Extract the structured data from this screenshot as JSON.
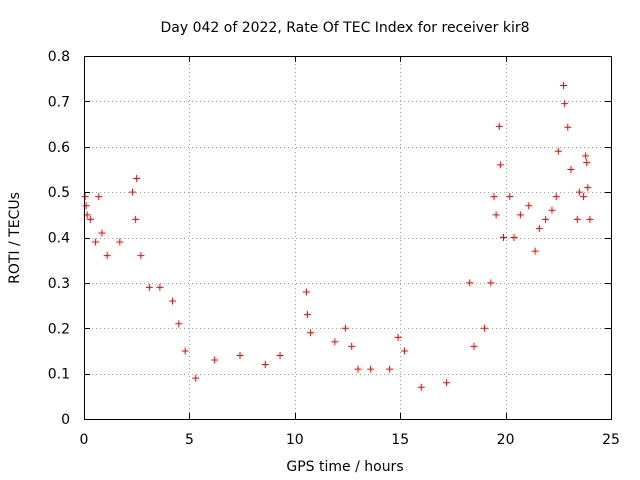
{
  "chart_data": {
    "type": "scatter",
    "title": "Day 042 of 2022, Rate Of TEC Index for receiver kir8",
    "xlabel": "GPS time / hours",
    "ylabel": "ROTI / TECUs",
    "xlim": [
      0,
      25
    ],
    "ylim": [
      0,
      0.8
    ],
    "xticks": [
      0,
      5,
      10,
      15,
      20,
      25
    ],
    "xtick_labels": [
      "0",
      "5",
      "10",
      "15",
      "20",
      "25"
    ],
    "yticks": [
      0,
      0.1,
      0.2,
      0.3,
      0.4,
      0.5,
      0.6,
      0.7,
      0.8
    ],
    "ytick_labels": [
      "0",
      "0.1",
      "0.2",
      "0.3",
      "0.4",
      "0.5",
      "0.6",
      "0.7",
      "0.8"
    ],
    "grid": true,
    "marker": "+",
    "color": "#ff0000",
    "series": [
      {
        "name": "ROTI",
        "points": [
          [
            0.05,
            0.49
          ],
          [
            0.1,
            0.47
          ],
          [
            0.15,
            0.45
          ],
          [
            0.3,
            0.44
          ],
          [
            0.55,
            0.39
          ],
          [
            0.7,
            0.49
          ],
          [
            0.85,
            0.41
          ],
          [
            1.1,
            0.36
          ],
          [
            1.7,
            0.39
          ],
          [
            2.3,
            0.5
          ],
          [
            2.45,
            0.44
          ],
          [
            2.5,
            0.53
          ],
          [
            2.7,
            0.36
          ],
          [
            3.1,
            0.29
          ],
          [
            3.6,
            0.29
          ],
          [
            4.2,
            0.26
          ],
          [
            4.5,
            0.21
          ],
          [
            4.8,
            0.15
          ],
          [
            5.3,
            0.09
          ],
          [
            6.2,
            0.13
          ],
          [
            7.4,
            0.14
          ],
          [
            8.6,
            0.12
          ],
          [
            9.3,
            0.14
          ],
          [
            10.55,
            0.28
          ],
          [
            10.6,
            0.23
          ],
          [
            10.75,
            0.19
          ],
          [
            11.9,
            0.17
          ],
          [
            12.4,
            0.2
          ],
          [
            12.7,
            0.16
          ],
          [
            13.0,
            0.11
          ],
          [
            13.6,
            0.11
          ],
          [
            14.5,
            0.11
          ],
          [
            14.9,
            0.18
          ],
          [
            15.2,
            0.15
          ],
          [
            16.0,
            0.07
          ],
          [
            17.2,
            0.08
          ],
          [
            18.3,
            0.3
          ],
          [
            18.5,
            0.16
          ],
          [
            19.0,
            0.2
          ],
          [
            19.3,
            0.3
          ],
          [
            19.45,
            0.49
          ],
          [
            19.55,
            0.45
          ],
          [
            19.7,
            0.645
          ],
          [
            19.75,
            0.56
          ],
          [
            19.9,
            0.4
          ],
          [
            20.2,
            0.49
          ],
          [
            20.4,
            0.4
          ],
          [
            20.7,
            0.45
          ],
          [
            21.1,
            0.47
          ],
          [
            21.4,
            0.37
          ],
          [
            21.6,
            0.42
          ],
          [
            21.9,
            0.44
          ],
          [
            22.2,
            0.46
          ],
          [
            22.4,
            0.49
          ],
          [
            22.5,
            0.59
          ],
          [
            22.75,
            0.735
          ],
          [
            22.8,
            0.695
          ],
          [
            22.95,
            0.643
          ],
          [
            23.1,
            0.55
          ],
          [
            23.4,
            0.44
          ],
          [
            23.5,
            0.5
          ],
          [
            23.7,
            0.49
          ],
          [
            23.8,
            0.58
          ],
          [
            23.85,
            0.565
          ],
          [
            23.9,
            0.51
          ],
          [
            24.0,
            0.44
          ]
        ]
      }
    ]
  }
}
